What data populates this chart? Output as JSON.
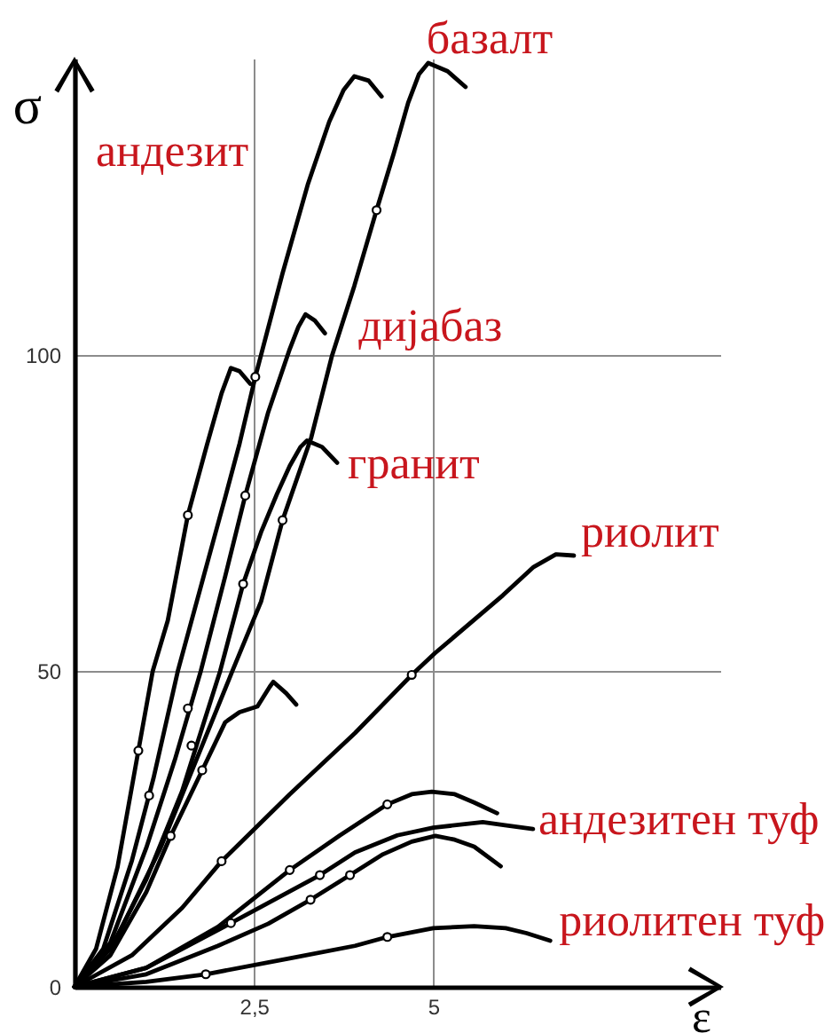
{
  "chart_data": {
    "type": "line",
    "xlabel": "ε",
    "ylabel": "σ",
    "xlim": [
      0,
      9
    ],
    "ylim": [
      0,
      147
    ],
    "xticks": [
      {
        "value": 2.5,
        "label": "2,5"
      },
      5
    ],
    "yticks": [
      0,
      50,
      100
    ],
    "grid": true,
    "series": [
      {
        "color": "#000000",
        "x": [
          0,
          0.3,
          0.6,
          0.89,
          1.09,
          1.3,
          1.58,
          1.85,
          2.05,
          2.18,
          2.3,
          2.45
        ],
        "values": [
          0,
          6,
          19,
          37.4,
          50,
          58,
          74.7,
          86,
          94,
          98,
          97.5,
          95.5
        ]
      },
      {
        "name": "андезит",
        "color": "#000000",
        "x": [
          0,
          0.4,
          0.8,
          1.1,
          1.44,
          1.8,
          2.1,
          2.3,
          2.52,
          2.9,
          3.25,
          3.55,
          3.75,
          3.9,
          4.1,
          4.28
        ],
        "values": [
          0,
          6,
          20,
          33,
          50,
          65,
          77.5,
          86,
          96.6,
          113,
          127,
          137,
          142,
          144.2,
          143.5,
          141
        ]
      },
      {
        "name": "дијабаз",
        "color": "#000000",
        "x": [
          0,
          0.5,
          1.0,
          1.4,
          1.76,
          2.1,
          2.38,
          2.7,
          3.0,
          3.12,
          3.22,
          3.35,
          3.49
        ],
        "values": [
          0,
          7,
          22,
          36,
          50,
          65,
          77.8,
          91,
          101,
          104.5,
          106.5,
          105.5,
          103.5
        ]
      },
      {
        "name": "гранит",
        "color": "#000000",
        "x": [
          0,
          0.5,
          1.0,
          1.5,
          1.7,
          2.03,
          2.35,
          2.6,
          2.82,
          3.0,
          3.15,
          3.24,
          3.45,
          3.66
        ],
        "values": [
          0,
          6,
          17,
          31,
          38.2,
          50,
          63.8,
          72,
          78,
          82.5,
          85.5,
          86.5,
          85.5,
          83
        ]
      },
      {
        "name": "базалт",
        "color": "#000000",
        "x": [
          0,
          0.6,
          1.2,
          1.7,
          2.2,
          2.6,
          2.9,
          3.3,
          3.59,
          3.9,
          4.21,
          4.45,
          4.65,
          4.8,
          4.93,
          5.2,
          5.45
        ],
        "values": [
          0,
          8,
          22,
          36,
          50,
          61,
          73.9,
          87,
          100,
          111,
          123,
          132,
          140,
          144.5,
          146.3,
          145,
          142.5
        ]
      },
      {
        "color": "#000000",
        "x": [
          0,
          0.5,
          1.0,
          1.34,
          1.78,
          2.1,
          2.3,
          2.55,
          2.72,
          2.77,
          2.95,
          3.09
        ],
        "values": [
          0,
          5,
          15,
          23.9,
          34.3,
          41.9,
          43.5,
          44.4,
          47.5,
          48.3,
          46.5,
          44.7
        ]
      },
      {
        "name": "риолит",
        "color": "#000000",
        "x": [
          0,
          0.8,
          1.5,
          2.05,
          3.0,
          3.91,
          4.7,
          5.02,
          5.97,
          6.4,
          6.71,
          6.96
        ],
        "values": [
          0,
          5,
          12.5,
          19.9,
          30.5,
          40.2,
          49.4,
          52.8,
          62,
          66.5,
          68.5,
          68.3
        ]
      },
      {
        "color": "#000000",
        "x": [
          0,
          1.0,
          2.0,
          3.0,
          3.7,
          4.36,
          4.7,
          4.98,
          5.3,
          5.57,
          5.89
        ],
        "values": [
          0,
          3,
          9.5,
          18.5,
          24,
          28.9,
          30.5,
          30.9,
          30.5,
          29.2,
          27.5
        ]
      },
      {
        "name": "андезитен туф",
        "color": "#000000",
        "x": [
          0,
          1.0,
          2.18,
          3.42,
          3.91,
          4.5,
          5.0,
          5.69,
          6.0,
          6.39
        ],
        "values": [
          0,
          3,
          10.1,
          17.7,
          21.3,
          24,
          25.2,
          26.1,
          25.6,
          25
        ]
      },
      {
        "color": "#000000",
        "x": [
          0,
          1.0,
          2.0,
          2.7,
          3.29,
          3.84,
          4.3,
          4.7,
          5.03,
          5.3,
          5.57,
          5.94
        ],
        "values": [
          0,
          2,
          6.5,
          10,
          13.8,
          17.7,
          21,
          23,
          23.9,
          23.3,
          22.2,
          19.1
        ]
      },
      {
        "name": "риолитен туф",
        "color": "#000000",
        "x": [
          0,
          1.0,
          1.83,
          3.0,
          3.91,
          4.36,
          5.0,
          5.57,
          6.01,
          6.3,
          6.63
        ],
        "values": [
          0,
          0.8,
          2.0,
          4.5,
          6.5,
          7.9,
          9.3,
          9.6,
          9.3,
          8.5,
          7.3
        ]
      },
      {
        "type": "scatter",
        "marker": "circle",
        "color": "#000000",
        "x": [
          0.89,
          1.58,
          2.52,
          1.04,
          2.38,
          1.58,
          1.63,
          2.35,
          2.9,
          4.21,
          1.34,
          1.78,
          2.05,
          4.7,
          3.0,
          4.36,
          3.42,
          2.18,
          3.29,
          3.84,
          1.83,
          4.36
        ],
        "values": [
          37.4,
          74.7,
          96.6,
          30.3,
          77.8,
          44.1,
          38.2,
          63.8,
          73.9,
          123,
          23.9,
          34.3,
          19.9,
          49.4,
          18.5,
          28.9,
          17.7,
          10.1,
          13.8,
          17.7,
          2.0,
          7.9
        ]
      }
    ]
  }
}
